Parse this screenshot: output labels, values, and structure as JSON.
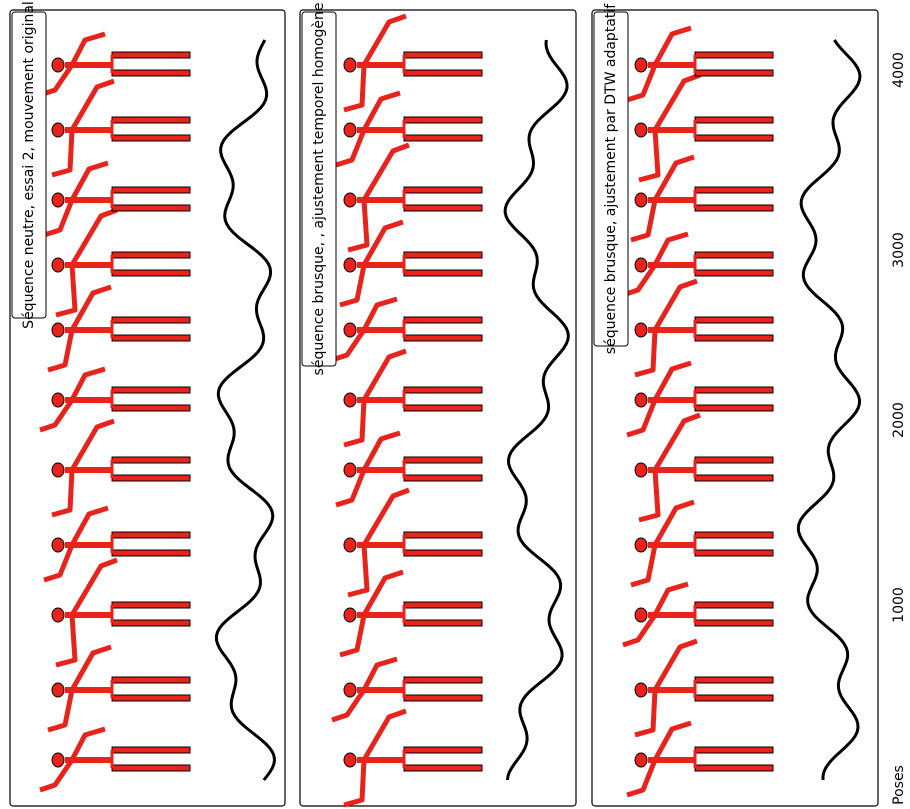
{
  "panels": [
    {
      "label": "Séquence neutre, essai 2, mouvement original"
    },
    {
      "label": "séquence brusque, , ajustement temporel homogène"
    },
    {
      "label": "séquence brusque, ajustement par DTW adaptatif"
    }
  ],
  "axis": {
    "title": "Poses",
    "ticks": [
      1000,
      2000,
      3000,
      4000
    ]
  }
}
